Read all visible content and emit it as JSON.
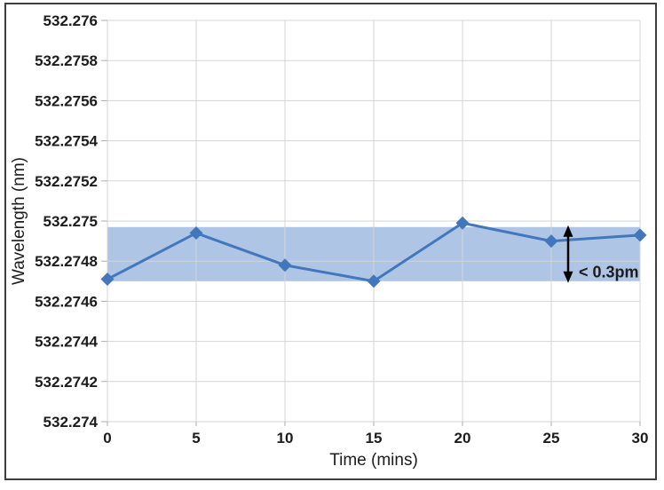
{
  "chart_data": {
    "type": "line",
    "title": "",
    "xlabel": "Time  (mins)",
    "ylabel": "Wavelength (nm)",
    "x": [
      0,
      5,
      10,
      15,
      20,
      25,
      30
    ],
    "series": [
      {
        "name": "wavelength",
        "values": [
          532.27471,
          532.27494,
          532.27478,
          532.2747,
          532.27499,
          532.2749,
          532.27493
        ],
        "color": "#4377bc",
        "marker": "diamond"
      }
    ],
    "xlim": [
      0,
      30
    ],
    "ylim": [
      532.274,
      532.276
    ],
    "xticks": [
      0,
      5,
      10,
      15,
      20,
      25,
      30
    ],
    "xtick_labels": [
      "0",
      "5",
      "10",
      "15",
      "20",
      "25",
      "30"
    ],
    "yticks": [
      532.274,
      532.2742,
      532.2744,
      532.2746,
      532.2748,
      532.275,
      532.2752,
      532.2754,
      532.2756,
      532.2758,
      532.276
    ],
    "ytick_labels": [
      "532.274",
      "532.2742",
      "532.2744",
      "532.2746",
      "532.2748",
      "532.275",
      "532.2752",
      "532.2754",
      "532.2756",
      "532.2758",
      "532.276"
    ],
    "grid": true,
    "legend": "none",
    "band": {
      "from": 532.2747,
      "to": 532.27497,
      "color": "#aec5e6"
    },
    "annotation": {
      "text": "< 0.3pm",
      "arrow_time": 25.95,
      "arrow_from": 532.2747,
      "arrow_to": 532.27497,
      "label_time": 26.55,
      "label_value": 532.27475
    }
  },
  "colors": {
    "line": "#4377bc",
    "band": "#aec5e6",
    "grid": "#d4d4d4",
    "tick_mark": "#ababab",
    "text": "#1c1c1c",
    "annotation": "#000000",
    "frame_border": "#3d3d3d",
    "background": "#ffffff"
  }
}
